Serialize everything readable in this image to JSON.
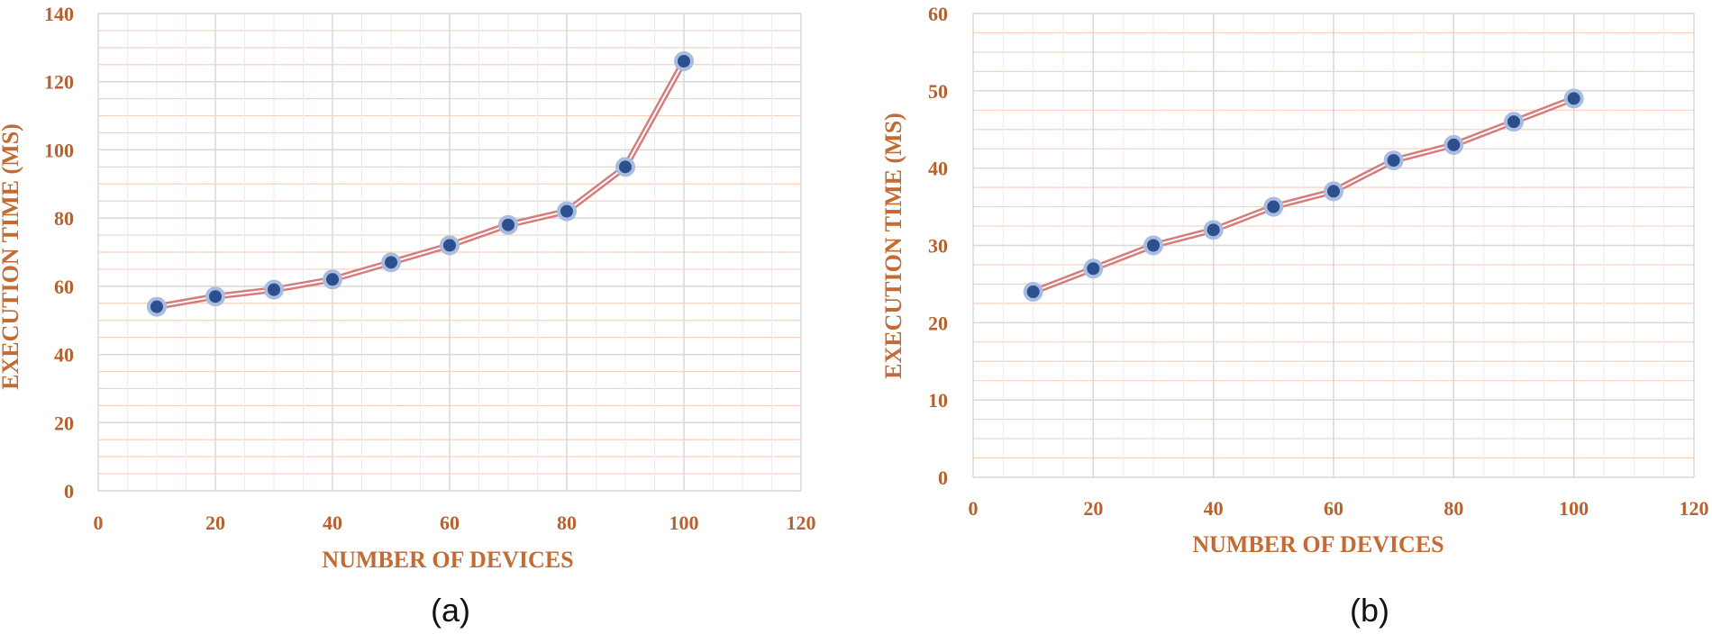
{
  "colors": {
    "line_outer": "#d77b7b",
    "line_inner": "#ffffff",
    "marker_fill": "#2d4f8e",
    "marker_ring": "#a9bde0",
    "axis_text": "#b8612e",
    "grid_major": "#d9d9d9",
    "grid_minor": "#f5d2c0"
  },
  "chart_data": [
    {
      "type": "line",
      "caption": "(a)",
      "xlabel": "NUMBER OF DEVICES",
      "ylabel": "EXECUTION TIME (MS)",
      "xlim": [
        0,
        120
      ],
      "ylim": [
        0,
        140
      ],
      "xticks": [
        0,
        20,
        40,
        60,
        80,
        100,
        120
      ],
      "yticks": [
        0,
        20,
        40,
        60,
        80,
        100,
        120,
        140
      ],
      "grid": true,
      "series": [
        {
          "x": [
            10,
            20,
            30,
            40,
            50,
            60,
            70,
            80,
            90,
            100
          ],
          "y": [
            54,
            57,
            59,
            62,
            67,
            72,
            78,
            82,
            95,
            126
          ]
        }
      ]
    },
    {
      "type": "line",
      "caption": "(b)",
      "xlabel": "NUMBER OF DEVICES",
      "ylabel": "EXECUTION TIME (MS)",
      "xlim": [
        0,
        120
      ],
      "ylim": [
        0,
        60
      ],
      "xticks": [
        0,
        20,
        40,
        60,
        80,
        100,
        120
      ],
      "yticks": [
        0,
        10,
        20,
        30,
        40,
        50,
        60
      ],
      "grid": true,
      "series": [
        {
          "x": [
            10,
            20,
            30,
            40,
            50,
            60,
            70,
            80,
            90,
            100
          ],
          "y": [
            24,
            27,
            30,
            32,
            35,
            37,
            41,
            43,
            46,
            49
          ]
        }
      ]
    }
  ]
}
